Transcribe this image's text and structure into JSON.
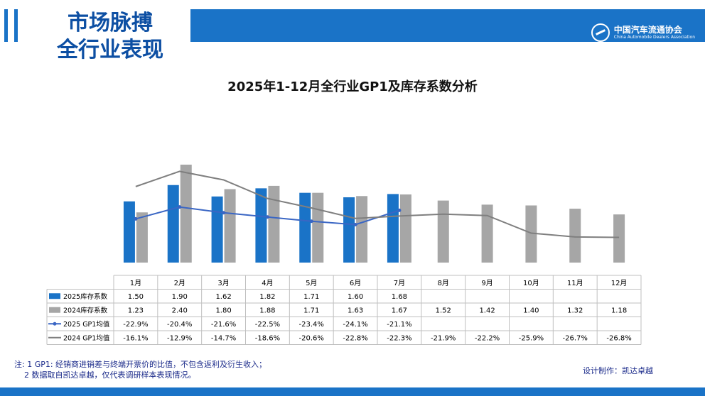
{
  "header": {
    "section_title_line1": "市场脉搏",
    "section_title_line2": "全行业表现",
    "brand_zh": "中国汽车流通协会",
    "brand_en": "China Automobile Dealers Association",
    "brand_color": "#1a73c7"
  },
  "notes": {
    "line1": "注: 1 GP1: 经销商进销差与终端开票价的比值，不包含返利及衍生收入；",
    "line2": "2 数据取自凯达卓越，仅代表调研样本表现情况。"
  },
  "credit": "设计制作：凯达卓越",
  "chart_data": {
    "type": "bar",
    "title": "2025年1-12月全行业GP1及库存系数分析",
    "categories": [
      "1月",
      "2月",
      "3月",
      "4月",
      "5月",
      "6月",
      "7月",
      "8月",
      "9月",
      "10月",
      "11月",
      "12月"
    ],
    "bar_series": [
      {
        "name": "2025库存系数",
        "color": "#1a73c7",
        "values": [
          1.5,
          1.9,
          1.62,
          1.82,
          1.71,
          1.6,
          1.68,
          null,
          null,
          null,
          null,
          null
        ],
        "labels": [
          "1.50",
          "1.90",
          "1.62",
          "1.82",
          "1.71",
          "1.60",
          "1.68",
          "",
          "",
          "",
          "",
          ""
        ]
      },
      {
        "name": "2024库存系数",
        "color": "#a6a6a6",
        "values": [
          1.23,
          2.4,
          1.8,
          1.88,
          1.71,
          1.63,
          1.67,
          1.52,
          1.42,
          1.4,
          1.32,
          1.18
        ],
        "labels": [
          "1.23",
          "2.40",
          "1.80",
          "1.88",
          "1.71",
          "1.63",
          "1.67",
          "1.52",
          "1.42",
          "1.40",
          "1.32",
          "1.18"
        ]
      }
    ],
    "line_series": [
      {
        "name": "2025 GP1均值",
        "color": "#3a66c4",
        "marker": true,
        "values": [
          -22.9,
          -20.4,
          -21.6,
          -22.5,
          -23.4,
          -24.1,
          -21.1,
          null,
          null,
          null,
          null,
          null
        ],
        "labels": [
          "-22.9%",
          "-20.4%",
          "-21.6%",
          "-22.5%",
          "-23.4%",
          "-24.1%",
          "-21.1%",
          "",
          "",
          "",
          "",
          ""
        ]
      },
      {
        "name": "2024 GP1均值",
        "color": "#7f7f7f",
        "marker": false,
        "values": [
          -16.1,
          -12.9,
          -14.7,
          -18.6,
          -20.6,
          -22.8,
          -22.3,
          -21.9,
          -22.2,
          -25.9,
          -26.7,
          -26.8
        ],
        "labels": [
          "-16.1%",
          "-12.9%",
          "-14.7%",
          "-18.6%",
          "-20.6%",
          "-22.8%",
          "-22.3%",
          "-21.9%",
          "-22.2%",
          "-25.9%",
          "-26.7%",
          "-26.8%"
        ]
      }
    ],
    "legend": "data-table"
  }
}
